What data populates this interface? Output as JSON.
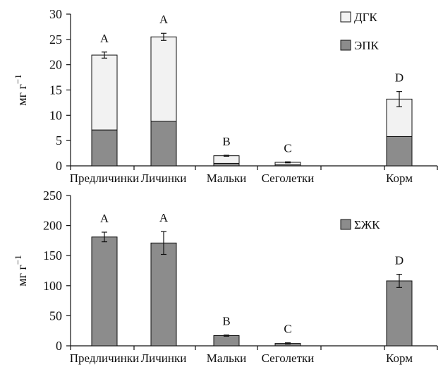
{
  "chart_data": [
    {
      "type": "bar",
      "stacked": true,
      "ylabel": "мг г",
      "ylabel_exponent": "−1",
      "ylim": [
        0,
        30
      ],
      "yticks": [
        0,
        5,
        10,
        15,
        20,
        25,
        30
      ],
      "categories": [
        "Предличинки",
        "Личинки",
        "Мальки",
        "Сеголетки",
        "",
        "Корм"
      ],
      "series": [
        {
          "name": "ЭПК",
          "color": "#8c8c8c",
          "values": [
            7.1,
            8.8,
            0.5,
            0.2,
            null,
            5.8
          ]
        },
        {
          "name": "ДГК",
          "color": "#f2f2f2",
          "values": [
            14.8,
            16.7,
            1.5,
            0.5,
            null,
            7.4
          ]
        }
      ],
      "totals": [
        21.9,
        25.5,
        2.0,
        0.7,
        null,
        13.2
      ],
      "error": [
        0.6,
        0.7,
        0.1,
        0.1,
        null,
        1.5
      ],
      "group_labels": [
        "A",
        "A",
        "B",
        "C",
        "",
        "D"
      ],
      "legend_position": "top-right"
    },
    {
      "type": "bar",
      "ylabel": "мг г",
      "ylabel_exponent": "−1",
      "ylim": [
        0,
        250
      ],
      "yticks": [
        0,
        50,
        100,
        150,
        200,
        250
      ],
      "categories": [
        "Предличинки",
        "Личинки",
        "Мальки",
        "Сеголетки",
        "",
        "Корм"
      ],
      "series": [
        {
          "name": "ΣЖК",
          "color": "#8c8c8c",
          "values": [
            181,
            171,
            17,
            4,
            null,
            108
          ]
        }
      ],
      "error": [
        8,
        19,
        1,
        1,
        null,
        11
      ],
      "group_labels": [
        "A",
        "A",
        "B",
        "C",
        "",
        "D"
      ],
      "legend_position": "top-right"
    }
  ]
}
